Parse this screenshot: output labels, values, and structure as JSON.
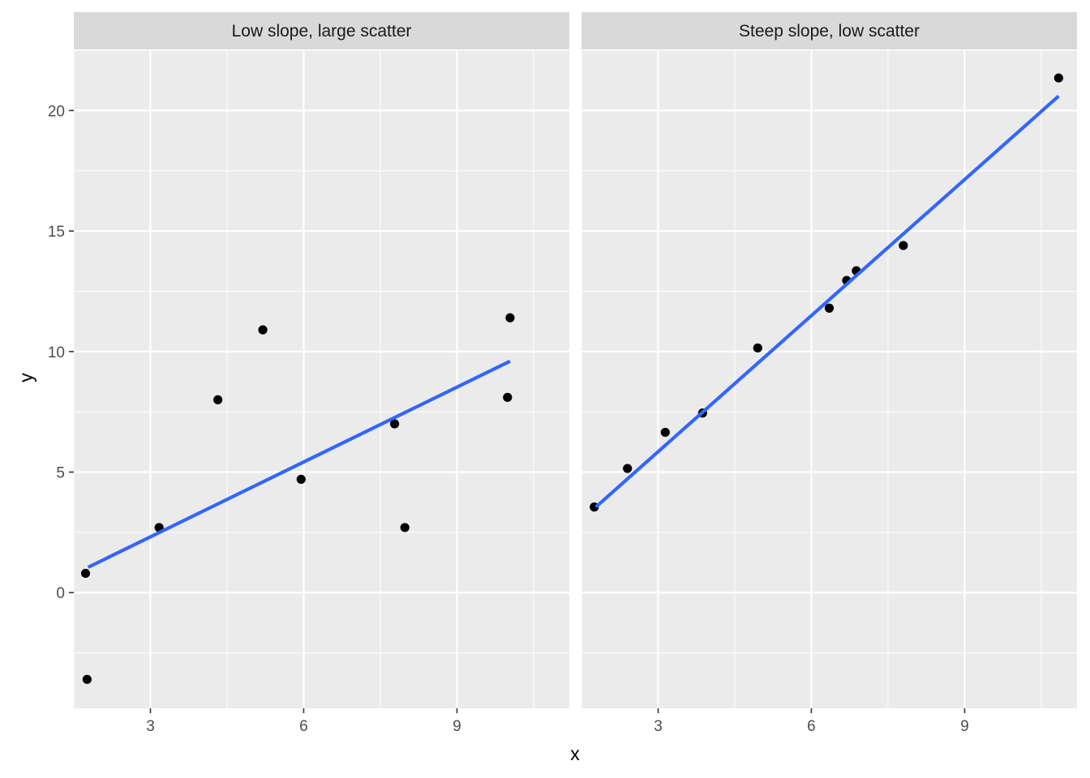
{
  "chart_data": {
    "type": "scatter",
    "xlabel": "x",
    "ylabel": "y",
    "shared_y": true,
    "xlim": [
      1.5,
      11.2
    ],
    "ylim": [
      -4.8,
      22.5
    ],
    "x_ticks": [
      3,
      6,
      9
    ],
    "y_ticks": [
      0,
      5,
      10,
      15,
      20
    ],
    "grid": true,
    "panels": [
      {
        "title": "Low slope, large scatter",
        "points": [
          {
            "x": 1.73,
            "y": 0.8
          },
          {
            "x": 1.76,
            "y": -3.6
          },
          {
            "x": 3.17,
            "y": 2.7
          },
          {
            "x": 4.32,
            "y": 8.0
          },
          {
            "x": 5.2,
            "y": 10.9
          },
          {
            "x": 5.95,
            "y": 4.7
          },
          {
            "x": 7.78,
            "y": 7.0
          },
          {
            "x": 7.98,
            "y": 2.7
          },
          {
            "x": 9.99,
            "y": 8.1
          },
          {
            "x": 10.04,
            "y": 11.4
          }
        ],
        "fit_line": {
          "x": [
            1.78,
            10.04
          ],
          "y": [
            1.05,
            9.6
          ]
        }
      },
      {
        "title": "Steep slope, low scatter",
        "points": [
          {
            "x": 1.75,
            "y": 3.55
          },
          {
            "x": 2.4,
            "y": 5.15
          },
          {
            "x": 3.14,
            "y": 6.65
          },
          {
            "x": 3.87,
            "y": 7.45
          },
          {
            "x": 4.95,
            "y": 10.15
          },
          {
            "x": 6.35,
            "y": 11.8
          },
          {
            "x": 6.69,
            "y": 12.95
          },
          {
            "x": 6.88,
            "y": 13.35
          },
          {
            "x": 7.8,
            "y": 14.4
          },
          {
            "x": 10.84,
            "y": 21.35
          }
        ],
        "fit_line": {
          "x": [
            1.78,
            10.84
          ],
          "y": [
            3.55,
            20.6
          ]
        }
      }
    ],
    "colors": {
      "panel_bg": "#ebebeb",
      "strip_bg": "#d9d9d9",
      "grid_major": "#ffffff",
      "point": "#000000",
      "fit_line": "#3366ff"
    }
  }
}
